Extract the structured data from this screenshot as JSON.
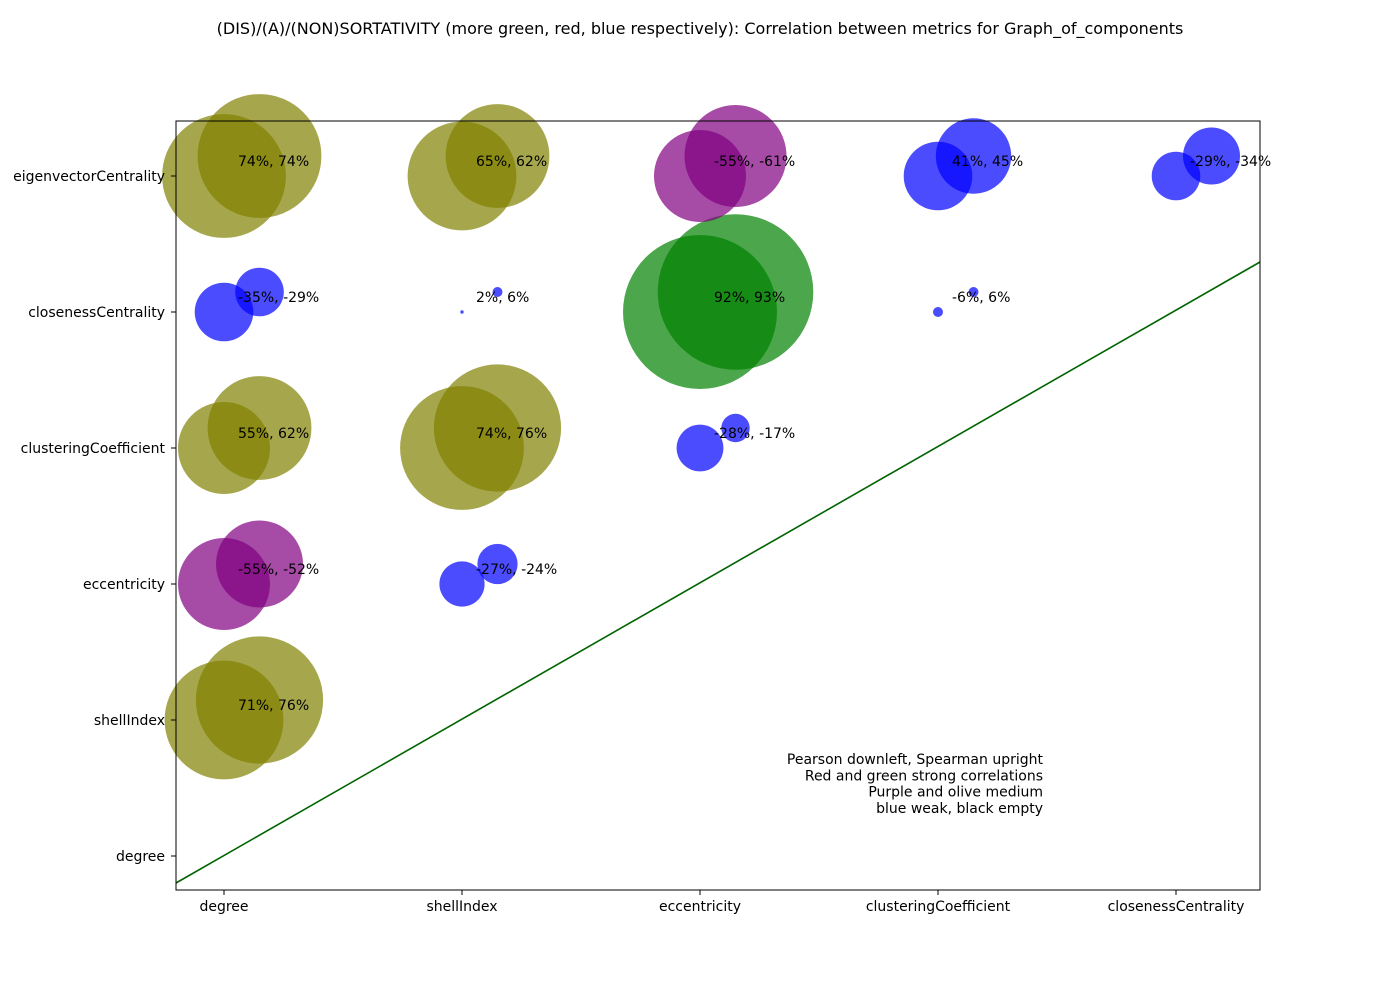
{
  "chart_data": {
    "type": "scatter",
    "title": "(DIS)/(A)/(NON)SORTATIVITY (more green, red, blue respectively): Correlation between metrics for Graph_of_components",
    "x_categories": [
      "degree",
      "shellIndex",
      "eccentricity",
      "clusteringCoefficient",
      "closenessCentrality"
    ],
    "y_categories": [
      "degree",
      "shellIndex",
      "eccentricity",
      "clusteringCoefficient",
      "closenessCentrality",
      "eigenvectorCentrality"
    ],
    "pairs": [
      {
        "x": "degree",
        "y": "shellIndex",
        "pearson": 71,
        "spearman": 76,
        "label": "71%, 76%"
      },
      {
        "x": "degree",
        "y": "eccentricity",
        "pearson": -55,
        "spearman": -52,
        "label": "-55%, -52%"
      },
      {
        "x": "degree",
        "y": "clusteringCoefficient",
        "pearson": 55,
        "spearman": 62,
        "label": "55%, 62%"
      },
      {
        "x": "degree",
        "y": "closenessCentrality",
        "pearson": -35,
        "spearman": -29,
        "label": "-35%, -29%"
      },
      {
        "x": "degree",
        "y": "eigenvectorCentrality",
        "pearson": 74,
        "spearman": 74,
        "label": "74%, 74%"
      },
      {
        "x": "shellIndex",
        "y": "eccentricity",
        "pearson": -27,
        "spearman": -24,
        "label": "-27%, -24%"
      },
      {
        "x": "shellIndex",
        "y": "clusteringCoefficient",
        "pearson": 74,
        "spearman": 76,
        "label": "74%, 76%"
      },
      {
        "x": "shellIndex",
        "y": "closenessCentrality",
        "pearson": 2,
        "spearman": 6,
        "label": "2%, 6%"
      },
      {
        "x": "shellIndex",
        "y": "eigenvectorCentrality",
        "pearson": 65,
        "spearman": 62,
        "label": "65%, 62%"
      },
      {
        "x": "eccentricity",
        "y": "clusteringCoefficient",
        "pearson": -28,
        "spearman": -17,
        "label": "-28%, -17%"
      },
      {
        "x": "eccentricity",
        "y": "closenessCentrality",
        "pearson": 92,
        "spearman": 93,
        "label": "92%, 93%"
      },
      {
        "x": "eccentricity",
        "y": "eigenvectorCentrality",
        "pearson": -55,
        "spearman": -61,
        "label": "-55%, -61%"
      },
      {
        "x": "clusteringCoefficient",
        "y": "closenessCentrality",
        "pearson": -6,
        "spearman": 6,
        "label": "-6%, 6%"
      },
      {
        "x": "clusteringCoefficient",
        "y": "eigenvectorCentrality",
        "pearson": 41,
        "spearman": 45,
        "label": "41%, 45%"
      },
      {
        "x": "closenessCentrality",
        "y": "eigenvectorCentrality",
        "pearson": -29,
        "spearman": -34,
        "label": "-29%, -34%"
      }
    ],
    "colors": {
      "strong_positive": "#008000",
      "strong_negative": "#ff0000",
      "medium_positive": "#808000",
      "medium_negative": "#800080",
      "weak": "#0000ff",
      "diagonal_line": "#006400"
    },
    "notes": [
      "Pearson downleft, Spearman upright",
      "Red and green strong correlations",
      "Purple and olive medium",
      "blue weak, black empty"
    ],
    "grid": false
  }
}
